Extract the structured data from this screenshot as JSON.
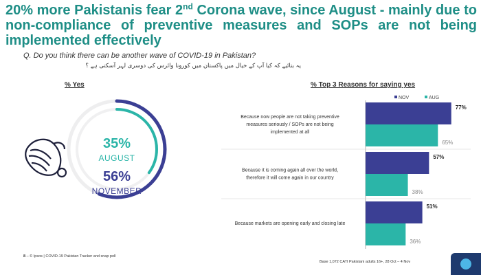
{
  "headline": {
    "part1": "20% more Pakistanis fear 2",
    "sup": "nd",
    "part2": " Corona wave, since August - mainly due to non-compliance of preventive measures and SOPs are not being implemented effectively"
  },
  "question": "Q. Do you think there can be another wave of COVID-19 in Pakistan?",
  "question_urdu": "یہ بتائیے کہ کیا آپ کے خیال میں پاکستان میں کورونا وائرس کی دوسری لہر آسکتی ہے ؟",
  "left_panel": {
    "title": "% Yes",
    "august_value": "35%",
    "august_label": "AUGUST",
    "november_value": "56%",
    "november_label": "NOVEMBER"
  },
  "right_panel": {
    "title": "% Top 3 Reasons for saying yes"
  },
  "colors": {
    "nov": "#3b3f94",
    "aug": "#2bb5a8",
    "headline": "#1e8e86",
    "track": "#e8e8ea"
  },
  "chart_data": [
    {
      "type": "pie",
      "title": "% Yes",
      "series": [
        {
          "name": "AUGUST",
          "value": 35
        },
        {
          "name": "NOVEMBER",
          "value": 56
        }
      ]
    },
    {
      "type": "bar",
      "title": "% Top 3 Reasons for saying yes",
      "orientation": "horizontal",
      "categories": [
        "Because now people are not taking preventive measures seriously / SOPs are not being implemented at all",
        "Because it is coming again all over the world, therefore it will come again in our country",
        "Because markets are opening early and closing late"
      ],
      "category_lines": [
        [
          "Because now people are not taking preventive",
          "measures seriously / SOPs are not being",
          "implemented at all"
        ],
        [
          "Because it is coming again all over the world,",
          "therefore it will come again in our country"
        ],
        [
          "Because markets are opening early and closing late"
        ]
      ],
      "series": [
        {
          "name": "NOV",
          "values": [
            77,
            57,
            51
          ],
          "labels": [
            "77%",
            "57%",
            "51%"
          ]
        },
        {
          "name": "AUG",
          "values": [
            65,
            38,
            36
          ],
          "labels": [
            "65%",
            "38%",
            "36%"
          ]
        }
      ],
      "xlim": [
        0,
        100
      ],
      "legend": "top-right",
      "grid": false
    }
  ],
  "footer": {
    "page": "8",
    "left": " – © Ipsos | COVID-19 Pakistan Tracker and snap poll",
    "right": "Base 1,072 CATI Pakistani adults 16+, 28 Oct – 4 Nov"
  }
}
